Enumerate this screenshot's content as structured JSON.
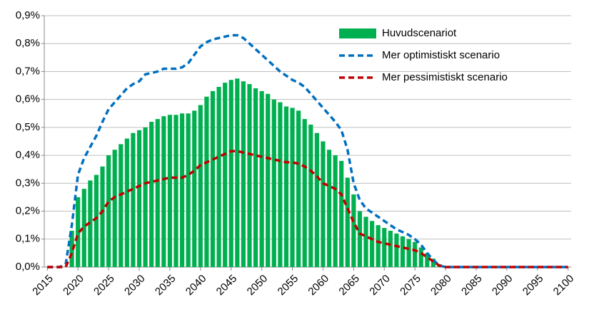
{
  "chart_data": {
    "type": "bar",
    "x": [
      2015,
      2016,
      2017,
      2018,
      2019,
      2020,
      2021,
      2022,
      2023,
      2024,
      2025,
      2026,
      2027,
      2028,
      2029,
      2030,
      2031,
      2032,
      2033,
      2034,
      2035,
      2036,
      2037,
      2038,
      2039,
      2040,
      2041,
      2042,
      2043,
      2044,
      2045,
      2046,
      2047,
      2048,
      2049,
      2050,
      2051,
      2052,
      2053,
      2054,
      2055,
      2056,
      2057,
      2058,
      2059,
      2060,
      2061,
      2062,
      2063,
      2064,
      2065,
      2066,
      2067,
      2068,
      2069,
      2070,
      2071,
      2072,
      2073,
      2074,
      2075,
      2076,
      2077,
      2078,
      2079,
      2080,
      2081,
      2082,
      2083,
      2084,
      2085,
      2086,
      2087,
      2088,
      2089,
      2090,
      2091,
      2092,
      2093,
      2094,
      2095,
      2096,
      2097,
      2098,
      2099,
      2100
    ],
    "series": [
      {
        "name": "Huvudscenariot",
        "color": "#00b050",
        "type": "bar",
        "values": [
          0,
          0,
          0,
          0,
          0.13,
          0.25,
          0.28,
          0.31,
          0.33,
          0.36,
          0.4,
          0.42,
          0.44,
          0.46,
          0.48,
          0.49,
          0.5,
          0.52,
          0.53,
          0.54,
          0.545,
          0.545,
          0.55,
          0.55,
          0.56,
          0.58,
          0.61,
          0.63,
          0.645,
          0.66,
          0.67,
          0.675,
          0.665,
          0.655,
          0.64,
          0.63,
          0.62,
          0.6,
          0.59,
          0.575,
          0.57,
          0.56,
          0.53,
          0.51,
          0.48,
          0.45,
          0.42,
          0.4,
          0.38,
          0.32,
          0.26,
          0.2,
          0.18,
          0.165,
          0.15,
          0.14,
          0.13,
          0.12,
          0.11,
          0.1,
          0.09,
          0.07,
          0.05,
          0.03,
          0.01,
          0,
          0,
          0,
          0,
          0,
          0,
          0,
          0,
          0,
          0,
          0,
          0,
          0,
          0,
          0,
          0,
          0,
          0,
          0,
          0,
          0
        ]
      },
      {
        "name": "Mer optimistiskt scenario",
        "color": "#0070c0",
        "type": "line",
        "dashed": true,
        "values": [
          0,
          0,
          0,
          0.01,
          0.15,
          0.33,
          0.39,
          0.43,
          0.47,
          0.52,
          0.565,
          0.59,
          0.615,
          0.64,
          0.655,
          0.665,
          0.69,
          0.695,
          0.7,
          0.71,
          0.71,
          0.71,
          0.715,
          0.73,
          0.76,
          0.79,
          0.805,
          0.815,
          0.82,
          0.825,
          0.83,
          0.83,
          0.82,
          0.8,
          0.78,
          0.76,
          0.74,
          0.72,
          0.7,
          0.685,
          0.67,
          0.66,
          0.645,
          0.62,
          0.595,
          0.57,
          0.545,
          0.52,
          0.49,
          0.42,
          0.3,
          0.24,
          0.21,
          0.195,
          0.18,
          0.165,
          0.15,
          0.135,
          0.125,
          0.115,
          0.1,
          0.08,
          0.05,
          0.025,
          0.005,
          0,
          0,
          0,
          0,
          0,
          0,
          0,
          0,
          0,
          0,
          0,
          0,
          0,
          0,
          0,
          0,
          0,
          0,
          0,
          0,
          0
        ]
      },
      {
        "name": "Mer pessimistiskt scenario",
        "color": "#c00000",
        "type": "line",
        "dashed": true,
        "values": [
          0,
          0,
          0,
          0,
          0.05,
          0.12,
          0.145,
          0.16,
          0.175,
          0.2,
          0.235,
          0.25,
          0.26,
          0.27,
          0.28,
          0.29,
          0.3,
          0.305,
          0.31,
          0.315,
          0.32,
          0.32,
          0.32,
          0.33,
          0.345,
          0.365,
          0.375,
          0.385,
          0.395,
          0.405,
          0.415,
          0.415,
          0.41,
          0.405,
          0.4,
          0.395,
          0.39,
          0.385,
          0.38,
          0.375,
          0.375,
          0.37,
          0.36,
          0.345,
          0.325,
          0.3,
          0.29,
          0.28,
          0.26,
          0.21,
          0.16,
          0.12,
          0.11,
          0.1,
          0.09,
          0.085,
          0.08,
          0.075,
          0.07,
          0.065,
          0.06,
          0.05,
          0.035,
          0.02,
          0.005,
          0,
          0,
          0,
          0,
          0,
          0,
          0,
          0,
          0,
          0,
          0,
          0,
          0,
          0,
          0,
          0,
          0,
          0,
          0,
          0,
          0
        ]
      }
    ],
    "xlim": [
      2014.5,
      2100.5
    ],
    "xticks": [
      2015,
      2020,
      2025,
      2030,
      2035,
      2040,
      2045,
      2050,
      2055,
      2060,
      2065,
      2070,
      2075,
      2080,
      2085,
      2090,
      2095,
      2100
    ],
    "ylim": [
      0,
      0.9
    ],
    "yticks": [
      {
        "value": 0,
        "label": "0,0%"
      },
      {
        "value": 0.1,
        "label": "0,1%"
      },
      {
        "value": 0.2,
        "label": "0,2%"
      },
      {
        "value": 0.3,
        "label": "0,3%"
      },
      {
        "value": 0.4,
        "label": "0,4%"
      },
      {
        "value": 0.5,
        "label": "0,5%"
      },
      {
        "value": 0.6,
        "label": "0,6%"
      },
      {
        "value": 0.7,
        "label": "0,7%"
      },
      {
        "value": 0.8,
        "label": "0,8%"
      },
      {
        "value": 0.9,
        "label": "0,9%"
      }
    ],
    "grid": true,
    "legend": "upper right"
  }
}
